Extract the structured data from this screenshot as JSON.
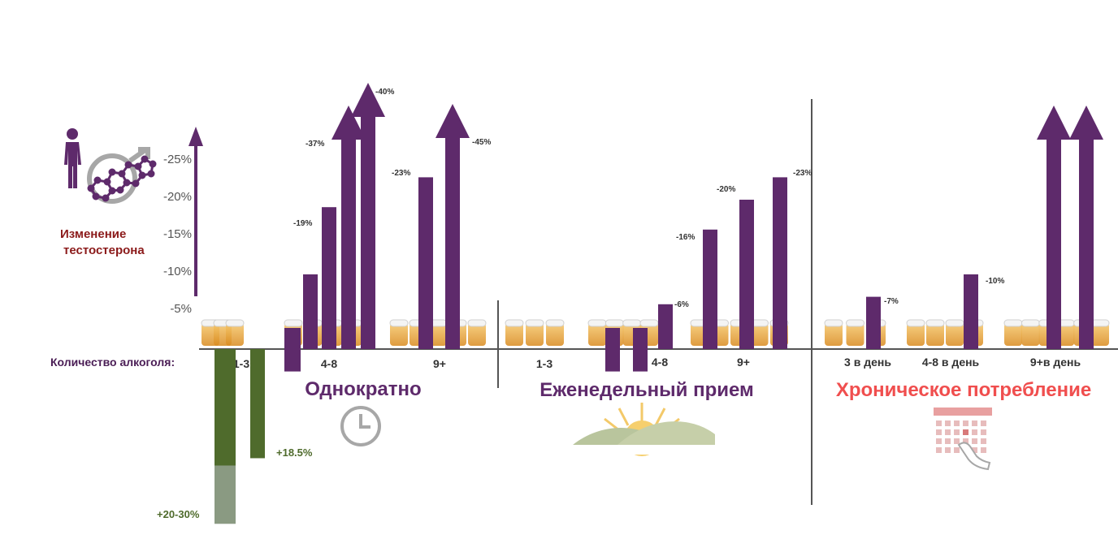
{
  "colors": {
    "purple": "#5e2a6b",
    "green": "#4f6b2c",
    "green_light": "#8a9a82",
    "axis": "#444444",
    "red_title": "#8b1a1a",
    "section_red": "#f04e4e",
    "section_purple": "#5e2a6b",
    "icon_gray": "#a7a7a7"
  },
  "labels": {
    "y_title_line1": "Изменение",
    "y_title_line2": "тестостерона",
    "x_title": "Количество алкоголя:",
    "sections": [
      "Однократно",
      "Еженедельный прием",
      "Хроническое потребление"
    ]
  },
  "icons": [
    "person-icon",
    "testosterone-molecule-icon",
    "beer-mugs-icon",
    "clock-icon",
    "sunrise-icon",
    "calendar-icon"
  ],
  "chart_data": {
    "type": "bar",
    "y_ticks": [
      "-25%",
      "-20%",
      "-15%",
      "-10%",
      "-5%"
    ],
    "y_tick_values": [
      25,
      20,
      15,
      10,
      5
    ],
    "groups": [
      {
        "section": "Однократно",
        "label": "1-3",
        "bars": [
          {
            "value": -20,
            "label": "+20-30%",
            "style": "green_light",
            "value_max": -30
          },
          {
            "value": -18.5,
            "label": "+18.5%",
            "style": "green"
          }
        ]
      },
      {
        "section": "Однократно",
        "label": "4-8",
        "bars": [
          {
            "value": -3
          },
          {
            "value": 10
          },
          {
            "value": 19,
            "label": "-19%"
          },
          {
            "value": 37,
            "label": "-37%",
            "arrow": true
          },
          {
            "value": 40,
            "label": "-40%",
            "arrow": true
          }
        ]
      },
      {
        "section": "Однократно",
        "label": "9+",
        "bars": [
          {
            "value": 23,
            "label": "-23%"
          },
          {
            "value": 45,
            "label": "-45%",
            "arrow": true
          }
        ]
      },
      {
        "section": "Еженедельный прием",
        "label": "1-3",
        "bars": []
      },
      {
        "section": "Еженедельный прием",
        "label": "4-8",
        "bars": [
          {
            "value": -3
          },
          {
            "value": -3
          },
          {
            "value": 6,
            "label": "-6%"
          }
        ]
      },
      {
        "section": "Еженедельный прием",
        "label": "9+",
        "bars": [
          {
            "value": 16,
            "label": "-16%"
          },
          {
            "value": 20,
            "label": "-20%"
          },
          {
            "value": 23,
            "label": "-23%"
          }
        ]
      },
      {
        "section": "Хроническое потребление",
        "label": "3 в день",
        "bars": [
          {
            "value": 7,
            "label": "-7%"
          }
        ]
      },
      {
        "section": "Хроническое потребление",
        "label": "4-8 в день",
        "bars": [
          {
            "value": 10,
            "label": "-10%"
          }
        ]
      },
      {
        "section": "Хроническое потребление",
        "label": "9+в день",
        "bars": [
          {
            "value": null,
            "arrow": true
          },
          {
            "value": null,
            "arrow": true
          }
        ]
      }
    ]
  }
}
